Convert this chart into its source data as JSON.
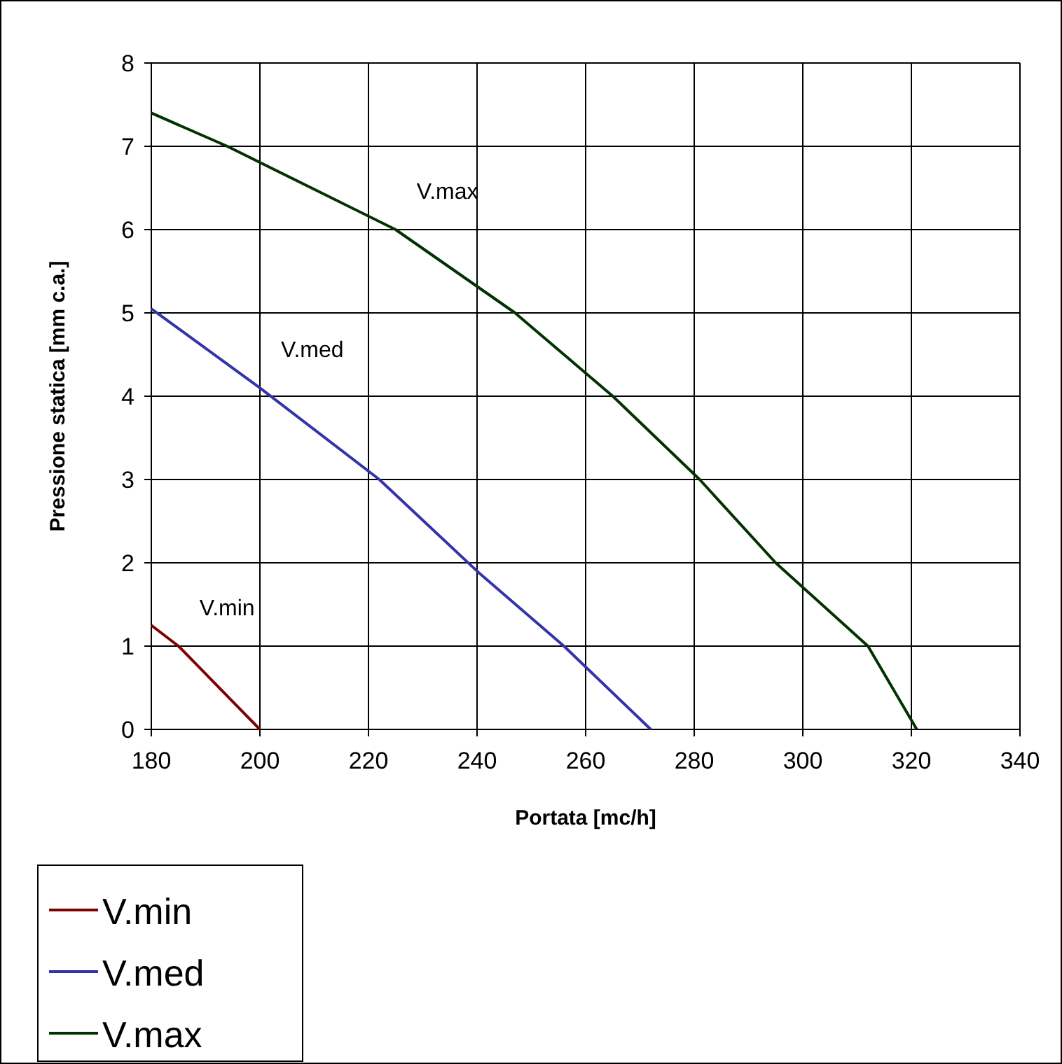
{
  "chart_data": {
    "type": "line",
    "xlabel": "Portata [mc/h]",
    "ylabel": "Pressione statica [mm c.a.]",
    "series": [
      {
        "name": "V.min",
        "color": "#800000",
        "x": [
          180,
          185,
          200
        ],
        "values": [
          1.25,
          1.0,
          0
        ]
      },
      {
        "name": "V.med",
        "color": "#3333aa",
        "x": [
          180,
          200,
          222,
          240,
          256,
          272
        ],
        "values": [
          5.05,
          4.1,
          3.0,
          1.9,
          1.0,
          0
        ]
      },
      {
        "name": "V.max",
        "color": "#003300",
        "x": [
          180,
          194,
          225,
          247,
          265,
          281,
          295,
          312,
          321
        ],
        "values": [
          7.4,
          7.0,
          6.0,
          5.0,
          4.0,
          3.0,
          2.0,
          1.0,
          0
        ]
      }
    ],
    "xlim": [
      180,
      340
    ],
    "xticks": [
      180,
      200,
      220,
      240,
      260,
      280,
      300,
      320,
      340
    ],
    "ylim": [
      0,
      8
    ],
    "yticks": [
      0,
      1,
      2,
      3,
      4,
      5,
      6,
      7,
      8
    ],
    "grid": true,
    "legend": "bottom left",
    "marker": "none",
    "line_style": "solid"
  }
}
